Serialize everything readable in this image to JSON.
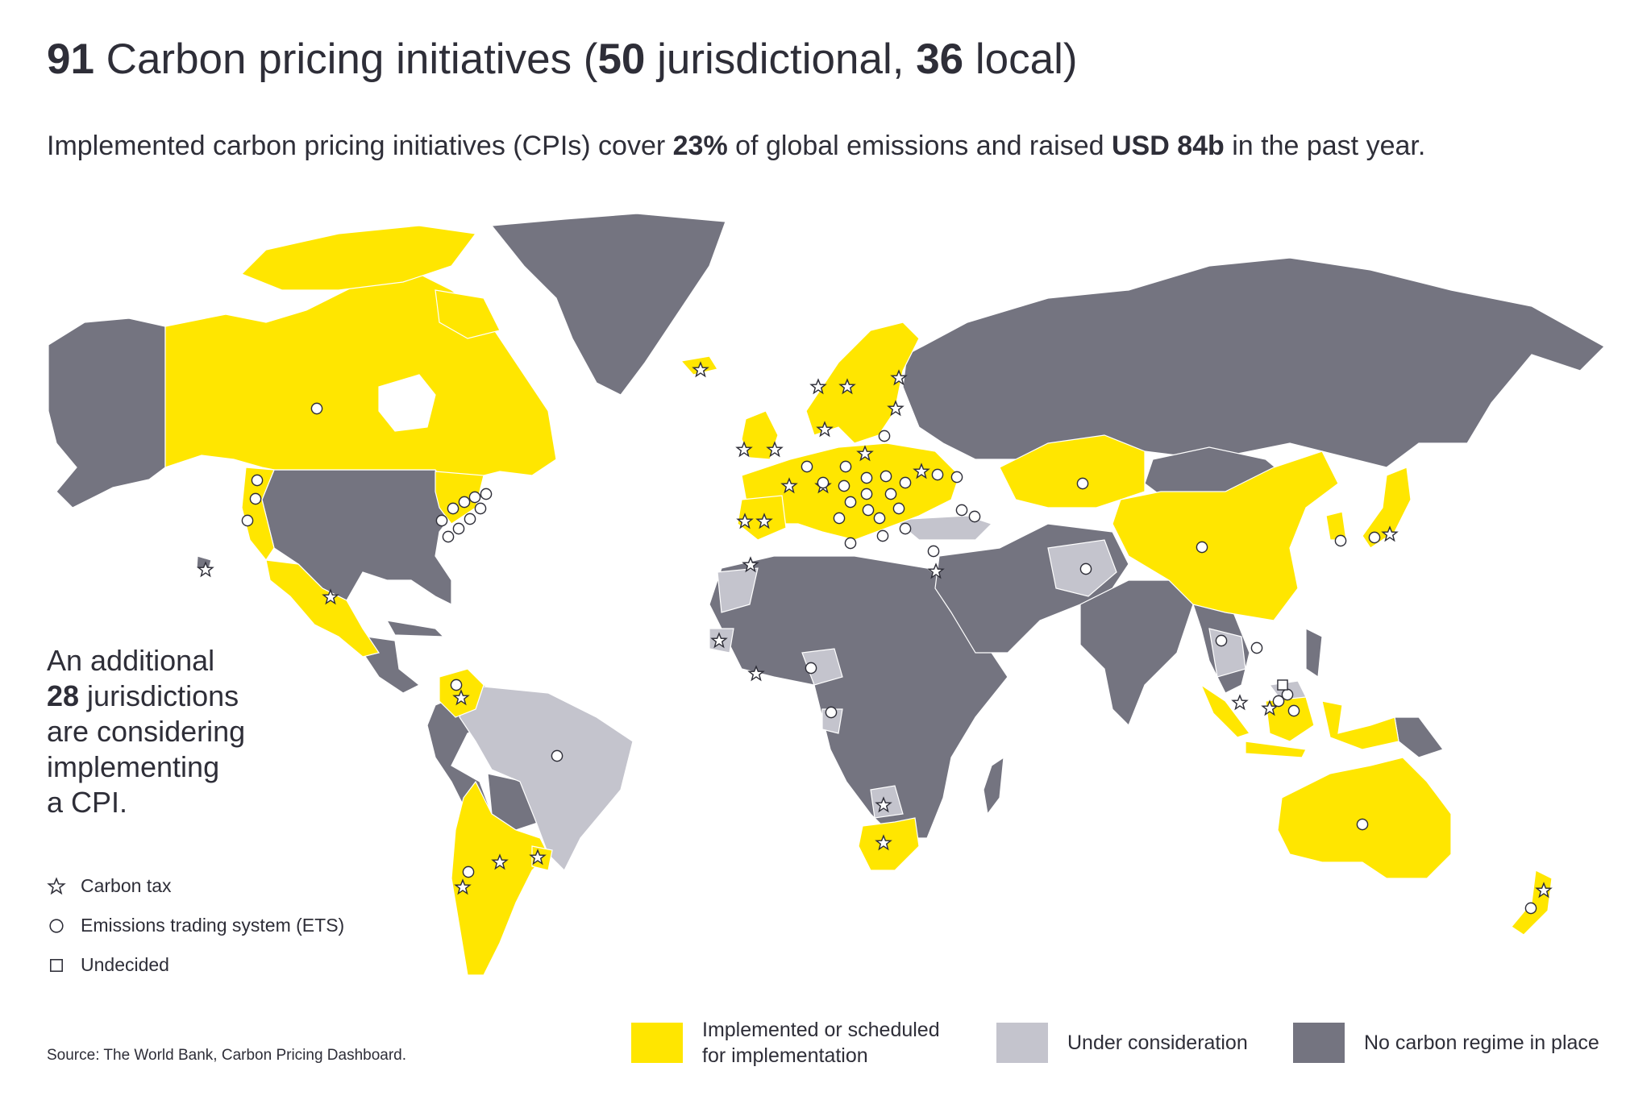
{
  "header": {
    "title_n1": "91",
    "title_t1": " Carbon pricing initiatives (",
    "title_n2": "50",
    "title_t2": " jurisdictional, ",
    "title_n3": "36",
    "title_t3": " local)",
    "sub_t1": "Implemented carbon pricing initiatives (CPIs) cover ",
    "sub_n1": "23%",
    "sub_t2": " of global emissions and raised ",
    "sub_n2": "USD 84b",
    "sub_t3": " in the past year."
  },
  "sidenote": {
    "line1": "An additional",
    "count": "28",
    "line2": " jurisdictions",
    "line3": "are considering",
    "line4": "implementing",
    "line5": "a CPI."
  },
  "symbol_legend": [
    {
      "icon": "star-icon",
      "label": "Carbon tax"
    },
    {
      "icon": "circle-icon",
      "label": "Emissions trading system (ETS)"
    },
    {
      "icon": "square-icon",
      "label": "Undecided"
    }
  ],
  "color_legend": {
    "implemented_line1": "Implemented or scheduled",
    "implemented_line2": "for implementation",
    "considering": "Under consideration",
    "none": "No carbon regime in place"
  },
  "colors": {
    "implemented": "#ffe600",
    "considering": "#c4c4cd",
    "none": "#747480",
    "text": "#2e2e38"
  },
  "source": "Source: The World Bank, Carbon Pricing Dashboard."
}
